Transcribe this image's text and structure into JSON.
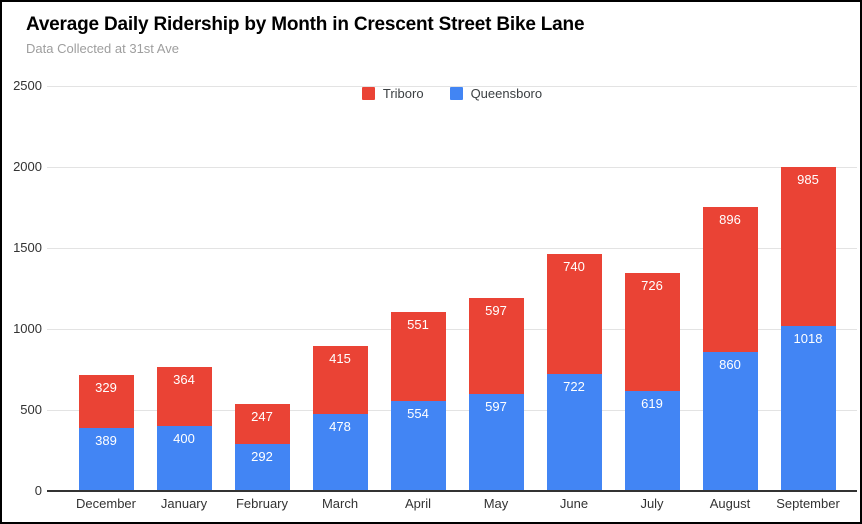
{
  "chart": {
    "title": "Average Daily Ridership by Month in Crescent Street Bike Lane",
    "subtitle": "Data Collected at 31st Ave"
  },
  "chart_data": {
    "type": "bar",
    "stacked": true,
    "title": "Average Daily Ridership by Month in Crescent Street Bike Lane",
    "subtitle": "Data Collected at 31st Ave",
    "xlabel": "",
    "ylabel": "",
    "categories": [
      "December",
      "January",
      "February",
      "March",
      "April",
      "May",
      "June",
      "July",
      "August",
      "September"
    ],
    "series": [
      {
        "name": "Queensboro",
        "color": "#4285f4",
        "values": [
          389,
          400,
          292,
          478,
          554,
          597,
          722,
          619,
          860,
          1018
        ]
      },
      {
        "name": "Triboro",
        "color": "#ea4335",
        "values": [
          329,
          364,
          247,
          415,
          551,
          597,
          740,
          726,
          896,
          985
        ]
      }
    ],
    "legend": {
      "position": "top-center",
      "entries": [
        {
          "label": "Triboro",
          "color": "#ea4335"
        },
        {
          "label": "Queensboro",
          "color": "#4285f4"
        }
      ]
    },
    "ylim": [
      0,
      2500
    ],
    "yticks": [
      0,
      500,
      1000,
      1500,
      2000,
      2500
    ],
    "grid": true,
    "data_labels": true,
    "colors": {
      "data_label_text": "#ffffff",
      "gridline": "#e3e3e3",
      "axis_line": "#333333",
      "tick_label": "#333333",
      "subtitle_text": "#9e9e9e",
      "frame_border": "#000000"
    }
  }
}
